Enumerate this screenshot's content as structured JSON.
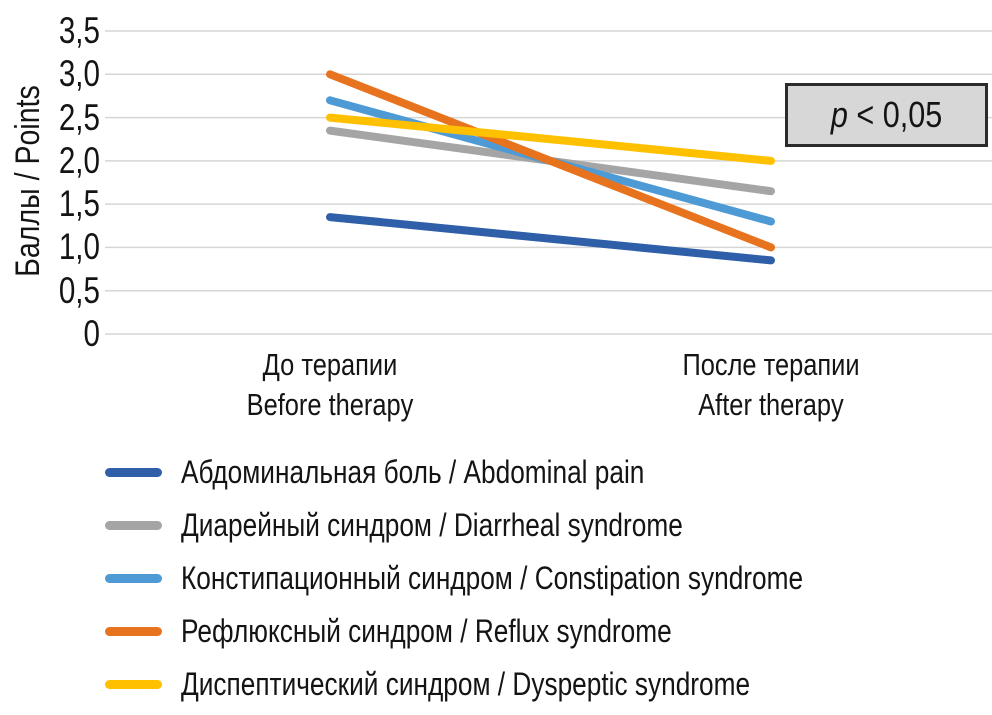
{
  "chart": {
    "y_axis_title": "Баллы / Points",
    "p_italic": "p",
    "p_rest": " < 0,05",
    "p_box_fill": "#d7d7d7",
    "p_box_border": "#2b2b2b",
    "grid_color": "#d6d6d6",
    "background": "#ffffff"
  },
  "chart_data": {
    "type": "line",
    "title": "",
    "xlabel": "",
    "ylabel": "Баллы / Points",
    "ylim": [
      0,
      3.5
    ],
    "grid": true,
    "legend_position": "bottom",
    "annotation": "p < 0,05",
    "categories": [
      {
        "ru": "До терапии",
        "en": "Before therapy"
      },
      {
        "ru": "После терапии",
        "en": "After therapy"
      }
    ],
    "yticks": [
      {
        "value": 0,
        "label": "0"
      },
      {
        "value": 0.5,
        "label": "0,5"
      },
      {
        "value": 1,
        "label": "1,0"
      },
      {
        "value": 1.5,
        "label": "1,5"
      },
      {
        "value": 2,
        "label": "2,0"
      },
      {
        "value": 2.5,
        "label": "2,5"
      },
      {
        "value": 3,
        "label": "3,0"
      },
      {
        "value": 3.5,
        "label": "3,5"
      }
    ],
    "series": [
      {
        "name": "Абдоминальная боль / Abdominal pain",
        "color": "#2f5fa8",
        "values": [
          1.35,
          0.85
        ]
      },
      {
        "name": "Диарейный синдром / Diarrheal syndrome",
        "color": "#a5a5a5",
        "values": [
          2.35,
          1.65
        ]
      },
      {
        "name": "Констипационный синдром / Constipation syndrome",
        "color": "#4d9ad5",
        "values": [
          2.7,
          1.3
        ]
      },
      {
        "name": "Рефлюксный синдром / Reflux syndrome",
        "color": "#e8731f",
        "values": [
          3.0,
          1.0
        ]
      },
      {
        "name": "Диспептический синдром / Dyspeptic syndrome",
        "color": "#ffc000",
        "values": [
          2.5,
          2.0
        ]
      }
    ]
  }
}
